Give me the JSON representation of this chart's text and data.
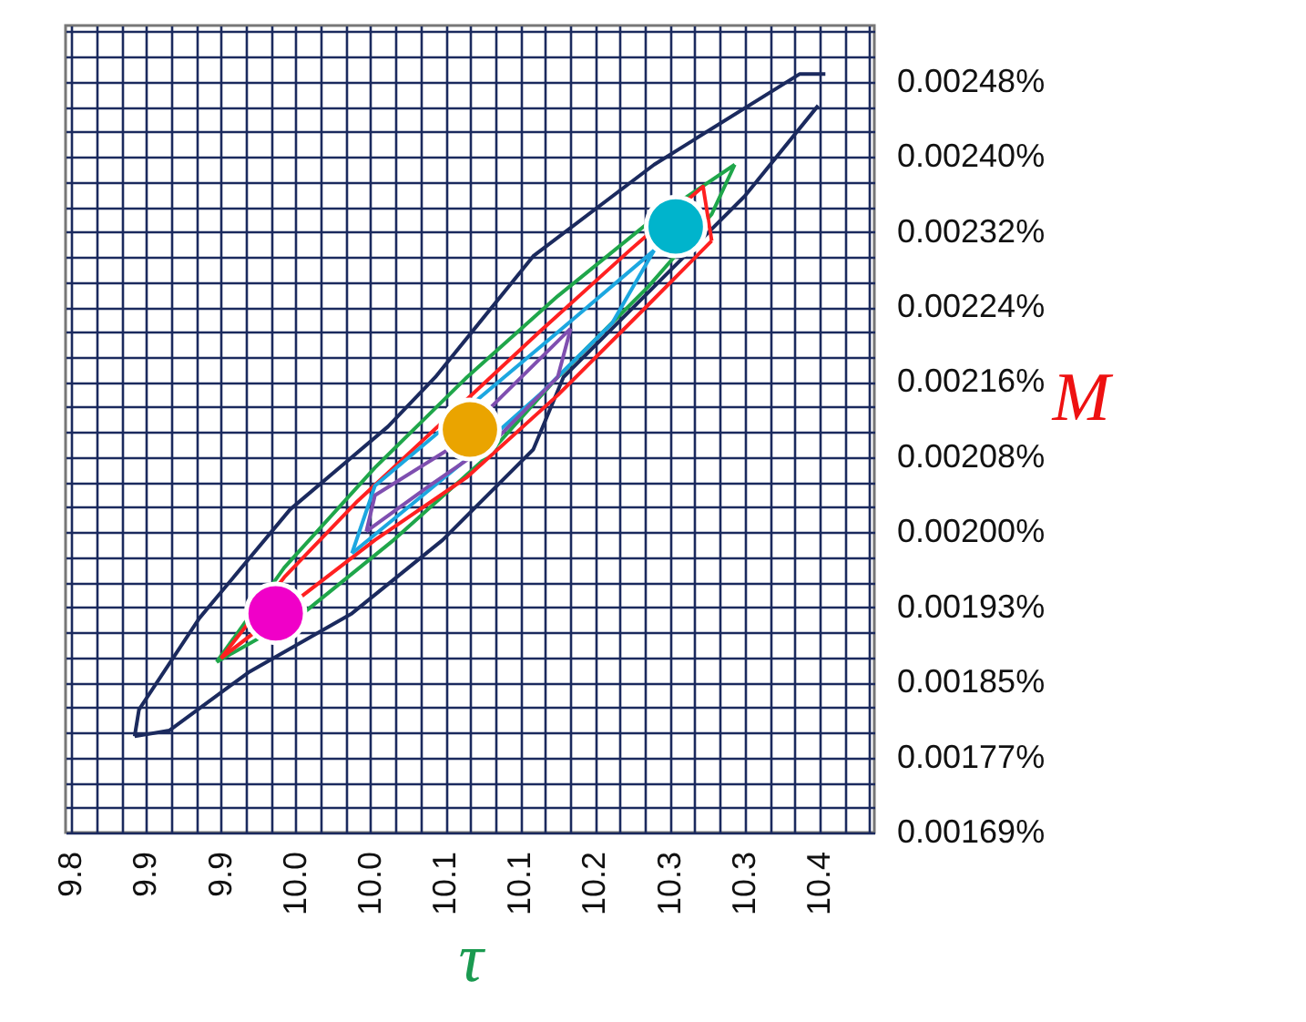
{
  "chart_data": {
    "type": "scatter",
    "xlabel": "τ",
    "ylabel": "M",
    "grid": true,
    "legend": false,
    "xlim": [
      9.832,
      10.394
    ],
    "ylim": [
      0.001689,
      0.002536
    ],
    "xticks": [
      {
        "value": 9.836,
        "label": "9.8"
      },
      {
        "value": 9.8533,
        "label": null
      },
      {
        "value": 9.8707,
        "label": null
      },
      {
        "value": 9.888,
        "label": "9.9"
      },
      {
        "value": 9.9053,
        "label": null
      },
      {
        "value": 9.9227,
        "label": null
      },
      {
        "value": 9.94,
        "label": "9.9"
      },
      {
        "value": 9.9573,
        "label": null
      },
      {
        "value": 9.9747,
        "label": null
      },
      {
        "value": 9.992,
        "label": "10.0"
      },
      {
        "value": 10.0093,
        "label": null
      },
      {
        "value": 10.0267,
        "label": null
      },
      {
        "value": 10.044,
        "label": "10.0"
      },
      {
        "value": 10.0613,
        "label": null
      },
      {
        "value": 10.0787,
        "label": null
      },
      {
        "value": 10.096,
        "label": "10.1"
      },
      {
        "value": 10.1133,
        "label": null
      },
      {
        "value": 10.1307,
        "label": null
      },
      {
        "value": 10.148,
        "label": "10.1"
      },
      {
        "value": 10.1653,
        "label": null
      },
      {
        "value": 10.1827,
        "label": null
      },
      {
        "value": 10.2,
        "label": "10.2"
      },
      {
        "value": 10.2173,
        "label": null
      },
      {
        "value": 10.2347,
        "label": null
      },
      {
        "value": 10.252,
        "label": "10.3"
      },
      {
        "value": 10.2693,
        "label": null
      },
      {
        "value": 10.2867,
        "label": null
      },
      {
        "value": 10.304,
        "label": "10.3"
      },
      {
        "value": 10.3213,
        "label": null
      },
      {
        "value": 10.3387,
        "label": null
      },
      {
        "value": 10.356,
        "label": "10.4"
      },
      {
        "value": 10.3733,
        "label": null
      },
      {
        "value": 10.3907,
        "label": null
      }
    ],
    "yticks": [
      {
        "value": 0.001689,
        "label": "0.00169%"
      },
      {
        "value": 0.0017153,
        "label": null
      },
      {
        "value": 0.0017415,
        "label": null
      },
      {
        "value": 0.0017678,
        "label": "0.00177%"
      },
      {
        "value": 0.001794,
        "label": null
      },
      {
        "value": 0.0018203,
        "label": null
      },
      {
        "value": 0.0018466,
        "label": "0.00185%"
      },
      {
        "value": 0.0018729,
        "label": null
      },
      {
        "value": 0.0018991,
        "label": null
      },
      {
        "value": 0.0019254,
        "label": "0.00193%"
      },
      {
        "value": 0.0019517,
        "label": null
      },
      {
        "value": 0.0019779,
        "label": null
      },
      {
        "value": 0.0020042,
        "label": "0.00200%"
      },
      {
        "value": 0.0020305,
        "label": null
      },
      {
        "value": 0.0020567,
        "label": null
      },
      {
        "value": 0.002083,
        "label": "0.00208%"
      },
      {
        "value": 0.0021093,
        "label": null
      },
      {
        "value": 0.0021355,
        "label": null
      },
      {
        "value": 0.0021618,
        "label": "0.00216%"
      },
      {
        "value": 0.0021881,
        "label": null
      },
      {
        "value": 0.0022143,
        "label": null
      },
      {
        "value": 0.0022406,
        "label": "0.00224%"
      },
      {
        "value": 0.0022669,
        "label": null
      },
      {
        "value": 0.0022931,
        "label": null
      },
      {
        "value": 0.0023194,
        "label": "0.00232%"
      },
      {
        "value": 0.0023457,
        "label": null
      },
      {
        "value": 0.0023719,
        "label": null
      },
      {
        "value": 0.0023982,
        "label": "0.00240%"
      },
      {
        "value": 0.0024245,
        "label": null
      },
      {
        "value": 0.0024507,
        "label": null
      },
      {
        "value": 0.002477,
        "label": "0.00248%"
      },
      {
        "value": 0.0025033,
        "label": null
      },
      {
        "value": 0.0025295,
        "label": null
      }
    ],
    "series": [
      {
        "type": "line",
        "color": "#1b2a5e",
        "x": [
          9.88,
          9.883,
          9.925,
          9.988,
          10.056,
          10.089,
          10.157,
          10.241,
          10.342,
          10.36
        ],
        "values": [
          0.00179,
          0.001818,
          0.001914,
          0.002028,
          0.002115,
          0.002167,
          0.002294,
          0.00239,
          0.002485,
          0.002485
        ]
      },
      {
        "type": "line",
        "color": "#1b2a5e",
        "x": [
          9.88,
          9.904,
          9.959,
          10.031,
          10.094,
          10.157,
          10.178,
          10.241,
          10.304,
          10.355
        ],
        "values": [
          0.00179,
          0.001796,
          0.001857,
          0.001919,
          0.001996,
          0.002091,
          0.002167,
          0.002262,
          0.002357,
          0.002452
        ]
      },
      {
        "type": "line",
        "color": "#1fa64a",
        "x": [
          9.937,
          9.984,
          10.047,
          10.111,
          10.174,
          10.237,
          10.297
        ],
        "values": [
          0.001868,
          0.001967,
          0.002072,
          0.002167,
          0.002252,
          0.002329,
          0.00239
        ]
      },
      {
        "type": "line",
        "color": "#1fa64a",
        "x": [
          9.937,
          9.997,
          10.06,
          10.123,
          10.174,
          10.237,
          10.281,
          10.297
        ],
        "values": [
          0.001868,
          0.001919,
          0.001996,
          0.002081,
          0.002167,
          0.002262,
          0.002338,
          0.00239
        ]
      },
      {
        "type": "line",
        "color": "#ff2020",
        "x": [
          9.94,
          9.984,
          10.035,
          10.161,
          10.224,
          10.275,
          10.281
        ],
        "values": [
          0.001872,
          0.001957,
          0.002037,
          0.002214,
          0.0023,
          0.002367,
          0.00231
        ]
      },
      {
        "type": "line",
        "color": "#ff2020",
        "x": [
          9.94,
          10.047,
          10.111,
          10.174,
          10.237,
          10.281
        ],
        "values": [
          0.001872,
          0.001996,
          0.002062,
          0.002148,
          0.002243,
          0.00231
        ]
      },
      {
        "type": "line",
        "color": "#1ca7e0",
        "x": [
          10.031,
          10.047,
          10.174,
          10.241
        ],
        "values": [
          0.001982,
          0.002053,
          0.002214,
          0.0023
        ]
      },
      {
        "type": "line",
        "color": "#1ca7e0",
        "x": [
          10.031,
          10.111,
          10.161,
          10.212,
          10.241
        ],
        "values": [
          0.001982,
          0.002081,
          0.002148,
          0.002224,
          0.0023
        ]
      },
      {
        "type": "line",
        "color": "#7f4fb0",
        "x": [
          10.041,
          10.047,
          10.098,
          10.136,
          10.183
        ],
        "values": [
          0.002005,
          0.002043,
          0.002091,
          0.002148,
          0.002218
        ]
      },
      {
        "type": "line",
        "color": "#7f4fb0",
        "x": [
          10.041,
          10.085,
          10.13,
          10.174,
          10.183
        ],
        "values": [
          0.002005,
          0.002053,
          0.0021,
          0.002167,
          0.002218
        ]
      },
      {
        "marker": "circle",
        "x": [
          9.978,
          10.113,
          10.256
        ],
        "values": [
          0.001919,
          0.002112,
          0.002325
        ],
        "colors": [
          "#f000c8",
          "#eaa400",
          "#00b4cc"
        ]
      }
    ]
  }
}
